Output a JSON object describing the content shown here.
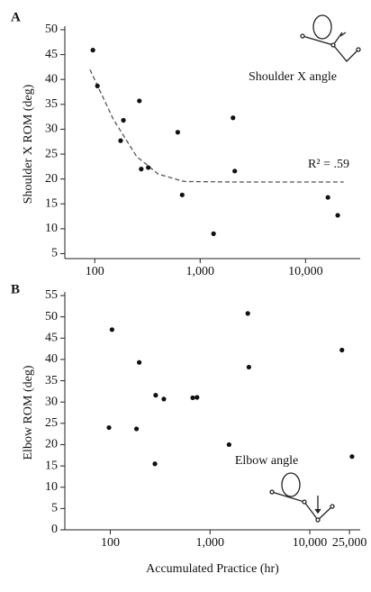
{
  "chart_data": [
    {
      "type": "scatter",
      "panel": "A",
      "ylabel": "Shoulder X ROM (deg)",
      "annotation": "Shoulder X angle",
      "fit_label": "R² = .59",
      "log_x": true,
      "color": "#111111",
      "x": [
        96,
        106,
        176,
        187,
        265,
        276,
        322,
        613,
        675,
        1340,
        2050,
        2130,
        16300,
        20200
      ],
      "y": [
        45.9,
        38.7,
        27.7,
        31.8,
        35.7,
        22.0,
        22.3,
        29.4,
        16.8,
        9.0,
        32.3,
        21.6,
        16.3,
        12.7
      ],
      "fit": {
        "x": [
          90,
          150,
          250,
          400,
          700,
          2000,
          23000
        ],
        "y": [
          42,
          32,
          24.5,
          21,
          19.5,
          19.4,
          19.4
        ]
      },
      "xlim": [
        52,
        33000
      ],
      "ylim": [
        4,
        50
      ],
      "xticks": [
        100,
        {
          "value": 1000,
          "label": "1,000"
        },
        {
          "value": 10000,
          "label": "10,000"
        }
      ],
      "yticks": [
        5,
        10,
        15,
        20,
        25,
        30,
        35,
        40,
        45,
        50
      ]
    },
    {
      "type": "scatter",
      "panel": "B",
      "ylabel": "Elbow ROM (deg)",
      "xlabel": "Accumulated Practice (hr)",
      "annotation": "Elbow angle",
      "log_x": true,
      "color": "#111111",
      "x": [
        97,
        104,
        183,
        195,
        285,
        280,
        344,
        670,
        740,
        1550,
        2390,
        2450,
        21000,
        26500
      ],
      "y": [
        24.0,
        47.0,
        23.7,
        39.3,
        31.6,
        15.5,
        30.7,
        31.0,
        31.1,
        20.0,
        50.8,
        38.2,
        42.2,
        17.2
      ],
      "xlim": [
        35,
        32000
      ],
      "ylim": [
        0,
        55
      ],
      "xticks": [
        100,
        {
          "value": 1000,
          "label": "1,000"
        },
        {
          "value": 10000,
          "label": "10,000"
        },
        {
          "value": 25000,
          "label": "25,000"
        }
      ],
      "yticks": [
        0,
        5,
        10,
        15,
        20,
        25,
        30,
        35,
        40,
        45,
        50,
        55
      ]
    }
  ]
}
